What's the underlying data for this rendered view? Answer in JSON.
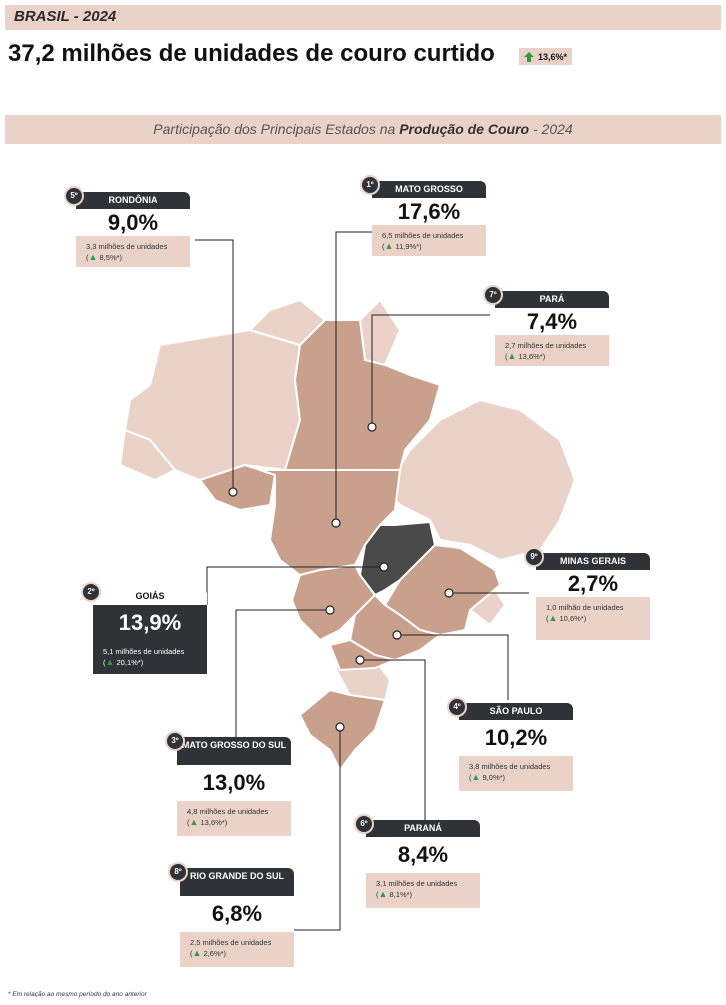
{
  "header": {
    "region_title": "BRASIL - 2024",
    "headline": "37,2 milhões de unidades de couro curtido",
    "growth": "13,6%*"
  },
  "subtitle": {
    "prefix": "Participação dos Principais Estados na ",
    "bold": "Produção de Couro",
    "suffix": " - 2024"
  },
  "colors": {
    "highlight_state": "#4a4a4a",
    "top_states": "#c9a08c",
    "other_states": "#ead2c8",
    "card_dark": "#2f3237",
    "arrow_up": "#2e9b3e"
  },
  "icons": {
    "growth_arrow": "arrow-up-icon"
  },
  "chart_data": {
    "type": "map",
    "title": "Participação dos Principais Estados na Produção de Couro - 2024",
    "unit": "% da produção",
    "states": [
      {
        "rank": "1º",
        "name": "MATO GROSSO",
        "share_label": "17,6%",
        "share": 17.6,
        "units": "6,5 milhões de unidades",
        "growth": "11,9%*"
      },
      {
        "rank": "2º",
        "name": "GOIÁS",
        "share_label": "13,9%",
        "share": 13.9,
        "units": "5,1 milhões de unidades",
        "growth": "20,1%*"
      },
      {
        "rank": "3º",
        "name": "MATO GROSSO DO SUL",
        "share_label": "13,0%",
        "share": 13.0,
        "units": "4,8 milhões de unidades",
        "growth": "13,6%*"
      },
      {
        "rank": "4º",
        "name": "SÃO PAULO",
        "share_label": "10,2%",
        "share": 10.2,
        "units": "3,8 milhões de unidades",
        "growth": "9,0%*"
      },
      {
        "rank": "5º",
        "name": "RONDÔNIA",
        "share_label": "9,0%",
        "share": 9.0,
        "units": "3,3 milhões de unidades",
        "growth": "8,5%*"
      },
      {
        "rank": "6º",
        "name": "PARANÁ",
        "share_label": "8,4%",
        "share": 8.4,
        "units": "3,1 milhões de unidades",
        "growth": "8,1%*"
      },
      {
        "rank": "7º",
        "name": "PARÁ",
        "share_label": "7,4%",
        "share": 7.4,
        "units": "2,7 milhões de unidades",
        "growth": "13,6%*"
      },
      {
        "rank": "8º",
        "name": "RIO GRANDE DO SUL",
        "share_label": "6,8%",
        "share": 6.8,
        "units": "2,5 milhões de unidades",
        "growth": "2,6%*"
      },
      {
        "rank": "9º",
        "name": "MINAS GERAIS",
        "share_label": "2,7%",
        "share": 2.7,
        "units": "1,0 milhão de unidades",
        "growth": "10,6%*"
      }
    ]
  },
  "footnote": "* Em relação ao mesmo período do ano anterior"
}
